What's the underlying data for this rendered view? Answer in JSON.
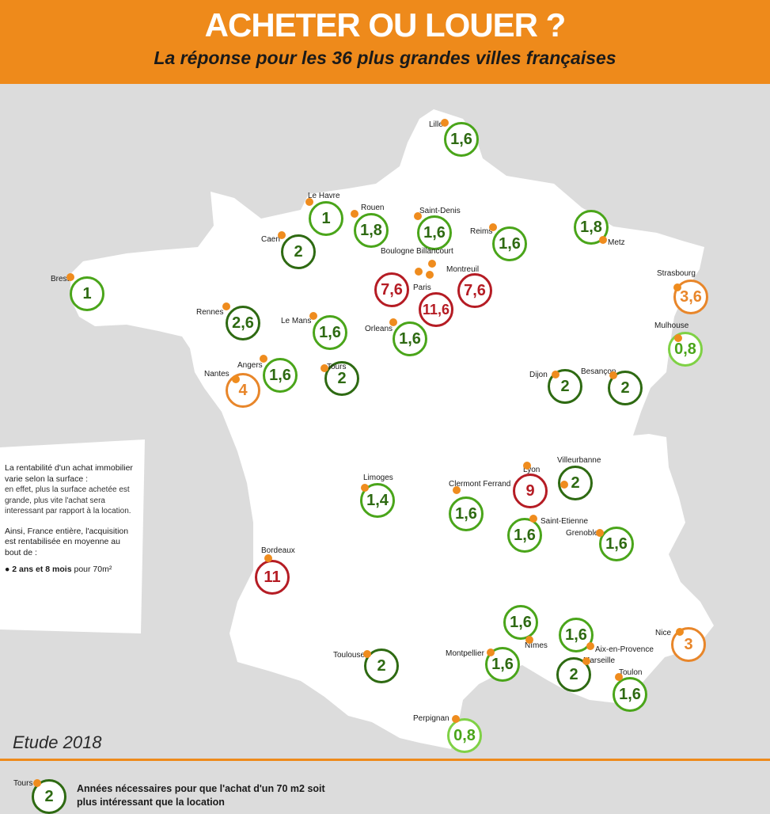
{
  "header": {
    "title": "ACHETER OU LOUER ?",
    "subtitle": "La réponse pour les 36 plus grandes villes françaises"
  },
  "colors": {
    "orange": "#ee8a1b",
    "dark_green": "#2e6a12",
    "green": "#4aa51a",
    "light_green": "#7fd145",
    "amber": "#e8862a",
    "red": "#b51c24"
  },
  "cities": [
    {
      "name": "Lille",
      "value": "1,6"
    },
    {
      "name": "Le Havre",
      "value": "1"
    },
    {
      "name": "Rouen",
      "value": "1,8"
    },
    {
      "name": "Saint-Denis",
      "value": "1,6"
    },
    {
      "name": "Reims",
      "value": "1,6"
    },
    {
      "name": "Metz",
      "value": "1,8"
    },
    {
      "name": "Caen",
      "value": "2"
    },
    {
      "name": "Brest",
      "value": "1"
    },
    {
      "name": "Boulogne Billancourt",
      "value": "7,6"
    },
    {
      "name": "Montreuil",
      "value": "7,6"
    },
    {
      "name": "Paris",
      "value": "11,6"
    },
    {
      "name": "Strasbourg",
      "value": "3,6"
    },
    {
      "name": "Rennes",
      "value": "2,6"
    },
    {
      "name": "Le Mans",
      "value": "1,6"
    },
    {
      "name": "Orleans",
      "value": "1,6"
    },
    {
      "name": "Mulhouse",
      "value": "0,8"
    },
    {
      "name": "Nantes",
      "value": "4"
    },
    {
      "name": "Angers",
      "value": "1,6"
    },
    {
      "name": "Tours",
      "value": "2"
    },
    {
      "name": "Dijon",
      "value": "2"
    },
    {
      "name": "Besançon",
      "value": "2"
    },
    {
      "name": "Limoges",
      "value": "1,4"
    },
    {
      "name": "Clermont Ferrand",
      "value": "1,6"
    },
    {
      "name": "Lyon",
      "value": "9"
    },
    {
      "name": "Villeurbanne",
      "value": "2"
    },
    {
      "name": "Saint-Etienne",
      "value": "1,6"
    },
    {
      "name": "Grenoble",
      "value": "1,6"
    },
    {
      "name": "Bordeaux",
      "value": "11"
    },
    {
      "name": "Nîmes",
      "value": "1,6"
    },
    {
      "name": "Aix-en-Provence",
      "value": "1,6"
    },
    {
      "name": "Nice",
      "value": "3"
    },
    {
      "name": "Toulouse",
      "value": "2"
    },
    {
      "name": "Montpellier",
      "value": "1,6"
    },
    {
      "name": "Marseille",
      "value": "2"
    },
    {
      "name": "Toulon",
      "value": "1,6"
    },
    {
      "name": "Perpignan",
      "value": "0,8"
    }
  ],
  "note": {
    "line1": "La rentabilité d'un achat immobilier varie selon la surface :",
    "line2": "en effet, plus la surface achetée est grande, plus vite l'achat sera interessant par rapport à la location.",
    "line3": "Ainsi, France entière, l'acquisition est rentabilisée en moyenne au bout de :",
    "bullet_bold": "2 ans et 8 mois",
    "bullet_rest": "pour 70m²"
  },
  "footer": {
    "etude": "Etude 2018",
    "legend_city": "Tours",
    "legend_value": "2",
    "legend_line1": "Années nécessaires pour que l'achat d'un 70 m2 soit",
    "legend_line2": "plus intéressant que la location"
  }
}
